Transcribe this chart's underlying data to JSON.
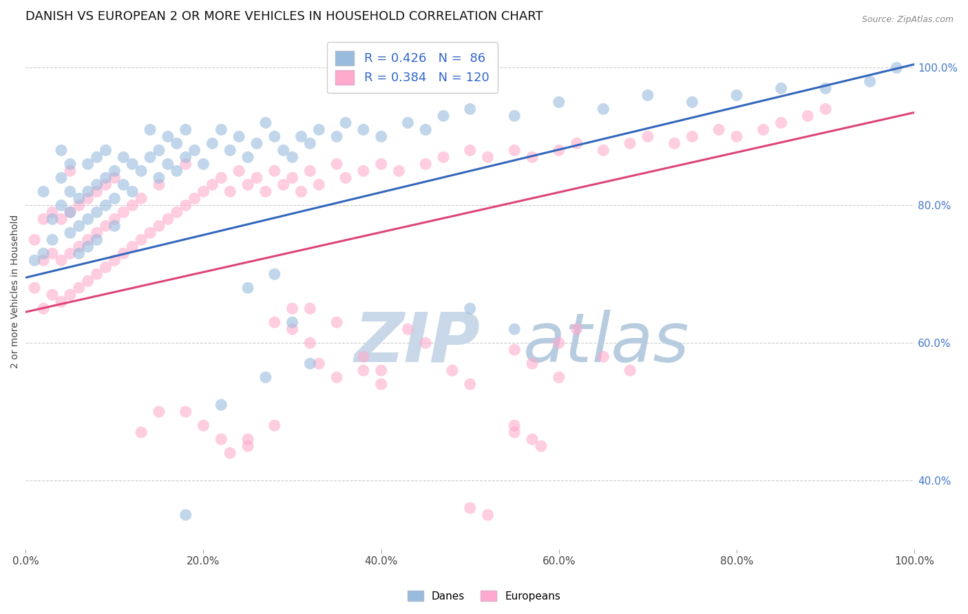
{
  "title": "DANISH VS EUROPEAN 2 OR MORE VEHICLES IN HOUSEHOLD CORRELATION CHART",
  "source": "Source: ZipAtlas.com",
  "ylabel": "2 or more Vehicles in Household",
  "xlim": [
    0.0,
    1.0
  ],
  "ylim": [
    0.3,
    1.05
  ],
  "danes_R": 0.426,
  "danes_N": 86,
  "europeans_R": 0.384,
  "europeans_N": 120,
  "blue_scatter_color": "#99bbdd",
  "pink_scatter_color": "#ffaacc",
  "blue_line_color": "#3366bb",
  "pink_line_color": "#dd4477",
  "watermark_zip_color": "#bbccdd",
  "watermark_atlas_color": "#aabbcc",
  "background_color": "#ffffff",
  "grid_color": "#cccccc",
  "title_fontsize": 13,
  "axis_label_fontsize": 10,
  "tick_fontsize": 11,
  "legend_fontsize": 13,
  "right_tick_color": "#4477cc",
  "source_color": "#888888",
  "legend_text_color": "#3366cc",
  "danes_x": [
    0.01,
    0.02,
    0.02,
    0.03,
    0.03,
    0.04,
    0.04,
    0.04,
    0.05,
    0.05,
    0.05,
    0.05,
    0.06,
    0.06,
    0.06,
    0.07,
    0.07,
    0.07,
    0.07,
    0.08,
    0.08,
    0.08,
    0.08,
    0.09,
    0.09,
    0.09,
    0.1,
    0.1,
    0.1,
    0.11,
    0.11,
    0.12,
    0.12,
    0.13,
    0.14,
    0.14,
    0.15,
    0.15,
    0.16,
    0.16,
    0.17,
    0.17,
    0.18,
    0.18,
    0.19,
    0.2,
    0.21,
    0.22,
    0.23,
    0.24,
    0.25,
    0.26,
    0.27,
    0.28,
    0.29,
    0.3,
    0.31,
    0.32,
    0.33,
    0.35,
    0.36,
    0.38,
    0.4,
    0.43,
    0.45,
    0.47,
    0.5,
    0.55,
    0.6,
    0.65,
    0.7,
    0.75,
    0.8,
    0.85,
    0.9,
    0.95,
    0.98,
    0.3,
    0.32,
    0.27,
    0.22,
    0.18,
    0.5,
    0.55,
    0.25,
    0.28
  ],
  "danes_y": [
    0.72,
    0.73,
    0.82,
    0.75,
    0.78,
    0.8,
    0.84,
    0.88,
    0.76,
    0.79,
    0.82,
    0.86,
    0.73,
    0.77,
    0.81,
    0.74,
    0.78,
    0.82,
    0.86,
    0.75,
    0.79,
    0.83,
    0.87,
    0.8,
    0.84,
    0.88,
    0.77,
    0.81,
    0.85,
    0.83,
    0.87,
    0.82,
    0.86,
    0.85,
    0.87,
    0.91,
    0.84,
    0.88,
    0.86,
    0.9,
    0.85,
    0.89,
    0.87,
    0.91,
    0.88,
    0.86,
    0.89,
    0.91,
    0.88,
    0.9,
    0.87,
    0.89,
    0.92,
    0.9,
    0.88,
    0.87,
    0.9,
    0.89,
    0.91,
    0.9,
    0.92,
    0.91,
    0.9,
    0.92,
    0.91,
    0.93,
    0.94,
    0.93,
    0.95,
    0.94,
    0.96,
    0.95,
    0.96,
    0.97,
    0.97,
    0.98,
    1.0,
    0.63,
    0.57,
    0.55,
    0.51,
    0.35,
    0.65,
    0.62,
    0.68,
    0.7
  ],
  "europeans_x": [
    0.01,
    0.01,
    0.02,
    0.02,
    0.02,
    0.03,
    0.03,
    0.03,
    0.04,
    0.04,
    0.04,
    0.05,
    0.05,
    0.05,
    0.05,
    0.06,
    0.06,
    0.06,
    0.07,
    0.07,
    0.07,
    0.08,
    0.08,
    0.08,
    0.09,
    0.09,
    0.09,
    0.1,
    0.1,
    0.1,
    0.11,
    0.11,
    0.12,
    0.12,
    0.13,
    0.13,
    0.14,
    0.15,
    0.15,
    0.16,
    0.17,
    0.18,
    0.18,
    0.19,
    0.2,
    0.21,
    0.22,
    0.23,
    0.24,
    0.25,
    0.26,
    0.27,
    0.28,
    0.29,
    0.3,
    0.31,
    0.32,
    0.33,
    0.35,
    0.36,
    0.38,
    0.4,
    0.42,
    0.45,
    0.47,
    0.5,
    0.52,
    0.55,
    0.57,
    0.6,
    0.62,
    0.65,
    0.68,
    0.7,
    0.73,
    0.75,
    0.78,
    0.8,
    0.83,
    0.85,
    0.88,
    0.9,
    0.3,
    0.32,
    0.18,
    0.2,
    0.13,
    0.15,
    0.43,
    0.45,
    0.55,
    0.57,
    0.6,
    0.22,
    0.25,
    0.28,
    0.33,
    0.35,
    0.5,
    0.52,
    0.38,
    0.4,
    0.65,
    0.68,
    0.32,
    0.35,
    0.23,
    0.25,
    0.6,
    0.62,
    0.55,
    0.58,
    0.28,
    0.3,
    0.48,
    0.5,
    0.38,
    0.4,
    0.55,
    0.57
  ],
  "europeans_y": [
    0.68,
    0.75,
    0.65,
    0.72,
    0.78,
    0.67,
    0.73,
    0.79,
    0.66,
    0.72,
    0.78,
    0.67,
    0.73,
    0.79,
    0.85,
    0.68,
    0.74,
    0.8,
    0.69,
    0.75,
    0.81,
    0.7,
    0.76,
    0.82,
    0.71,
    0.77,
    0.83,
    0.72,
    0.78,
    0.84,
    0.73,
    0.79,
    0.74,
    0.8,
    0.75,
    0.81,
    0.76,
    0.77,
    0.83,
    0.78,
    0.79,
    0.8,
    0.86,
    0.81,
    0.82,
    0.83,
    0.84,
    0.82,
    0.85,
    0.83,
    0.84,
    0.82,
    0.85,
    0.83,
    0.84,
    0.82,
    0.85,
    0.83,
    0.86,
    0.84,
    0.85,
    0.86,
    0.85,
    0.86,
    0.87,
    0.88,
    0.87,
    0.88,
    0.87,
    0.88,
    0.89,
    0.88,
    0.89,
    0.9,
    0.89,
    0.9,
    0.91,
    0.9,
    0.91,
    0.92,
    0.93,
    0.94,
    0.62,
    0.6,
    0.5,
    0.48,
    0.47,
    0.5,
    0.62,
    0.6,
    0.59,
    0.57,
    0.55,
    0.46,
    0.45,
    0.48,
    0.57,
    0.55,
    0.36,
    0.35,
    0.56,
    0.54,
    0.58,
    0.56,
    0.65,
    0.63,
    0.44,
    0.46,
    0.6,
    0.62,
    0.47,
    0.45,
    0.63,
    0.65,
    0.56,
    0.54,
    0.58,
    0.56,
    0.48,
    0.46
  ],
  "danes_line_x0": 0.0,
  "danes_line_y0": 0.695,
  "danes_line_x1": 1.0,
  "danes_line_y1": 1.005,
  "euros_line_x0": 0.0,
  "euros_line_y0": 0.645,
  "euros_line_x1": 1.0,
  "euros_line_y1": 0.935
}
